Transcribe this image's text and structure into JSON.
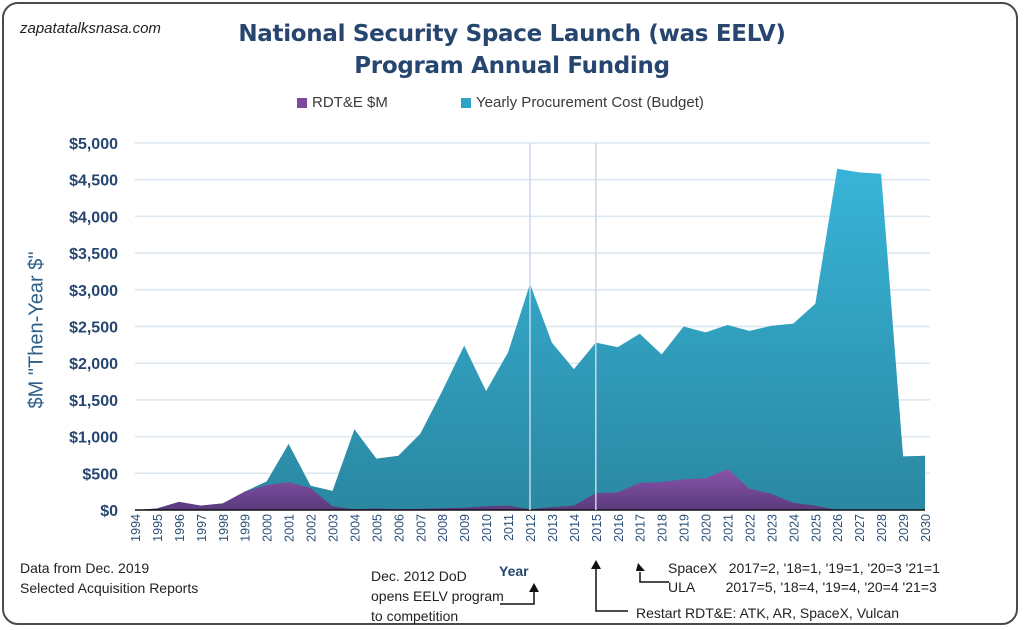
{
  "header": {
    "site": "zapatatalksnasa.com",
    "title_line1": "National Security Space Launch (was EELV)",
    "title_line2": "Program Annual Funding"
  },
  "legend": [
    {
      "label": "RDT&E $M",
      "color": "#7b4a9b"
    },
    {
      "label": "Yearly Procurement Cost (Budget)",
      "color": "#2fa3c4"
    }
  ],
  "notes": {
    "source_line1": "Data from Dec. 2019",
    "source_line2": "Selected Acquisition Reports",
    "dod_line1": "Dec. 2012 DoD",
    "dod_line2": "opens EELV program",
    "dod_line3": "to competition",
    "spacex": "SpaceX   2017=2, '18=1, '19=1, '20=3 '21=1",
    "ula": "ULA        2017=5, '18=4, '19=4, '20=4 '21=3",
    "restart": "Restart RDT&E: ATK, AR, SpaceX, Vulcan"
  },
  "chart_data": {
    "type": "area",
    "title": "National Security Space Launch (was EELV) Program Annual Funding",
    "xlabel": "Year",
    "ylabel": "$M \"Then-Year $\"",
    "ylim": [
      0,
      5000
    ],
    "yticks": [
      0,
      500,
      1000,
      1500,
      2000,
      2500,
      3000,
      3500,
      4000,
      4500,
      5000
    ],
    "ytick_labels": [
      "$0",
      "$500",
      "$1,000",
      "$1,500",
      "$2,000",
      "$2,500",
      "$3,000",
      "$3,500",
      "$4,000",
      "$4,500",
      "$5,000"
    ],
    "grid": true,
    "legend_position": "top-center",
    "x": [
      "1994",
      "1995",
      "1996",
      "1997",
      "1998",
      "1999",
      "2000",
      "2001",
      "2002",
      "2003",
      "2004",
      "2005",
      "2006",
      "2007",
      "2008",
      "2009",
      "2010",
      "2011",
      "2012",
      "2013",
      "2014",
      "2015",
      "2016",
      "2017",
      "2018",
      "2019",
      "2020",
      "2021",
      "2022",
      "2023",
      "2024",
      "2025",
      "2026",
      "2027",
      "2028",
      "2029",
      "2030"
    ],
    "series": [
      {
        "name": "Yearly Procurement Cost (Budget)",
        "color": "#2fa3c4",
        "values": [
          0,
          20,
          110,
          60,
          90,
          250,
          390,
          900,
          330,
          260,
          1100,
          700,
          740,
          1040,
          1620,
          2240,
          1620,
          2150,
          3080,
          2280,
          1920,
          2280,
          2220,
          2400,
          2120,
          2500,
          2420,
          2520,
          2440,
          2510,
          2540,
          2810,
          4650,
          4600,
          4580,
          730,
          740
        ]
      },
      {
        "name": "RDT&E $M",
        "color": "#7b4a9b",
        "values": [
          0,
          20,
          110,
          60,
          90,
          250,
          340,
          380,
          300,
          50,
          10,
          20,
          10,
          15,
          25,
          30,
          50,
          60,
          10,
          40,
          60,
          230,
          240,
          370,
          380,
          420,
          430,
          560,
          290,
          220,
          100,
          60,
          0,
          0,
          0,
          0,
          0
        ]
      }
    ],
    "annotations": [
      {
        "x": "2012",
        "text": "Dec. 2012 DoD opens EELV program to competition"
      },
      {
        "x": "2015",
        "text": "Restart RDT&E: ATK, AR, SpaceX, Vulcan"
      },
      {
        "x": "2017",
        "text": "SpaceX 2017=2, '18=1, '19=1, '20=3 '21=1; ULA 2017=5, '18=4, '19=4, '20=4 '21=3"
      }
    ]
  }
}
